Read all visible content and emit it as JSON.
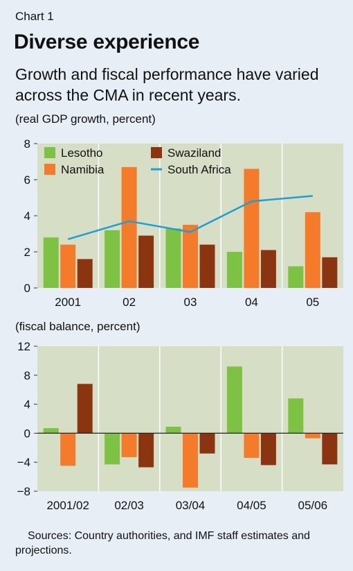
{
  "header": {
    "chart_label": "Chart 1",
    "title": "Diverse experience",
    "subtitle": "Growth and fiscal performance have varied across the CMA in recent years."
  },
  "colors": {
    "background": "#e8eef5",
    "plot_bg": "#d6dfc5",
    "Lesotho": "#7dc242",
    "Namibia": "#f47b2a",
    "Swaziland": "#8b3510",
    "South Africa": "#1e9fd4"
  },
  "sources": "Sources: Country authorities, and IMF staff estimates and projections.",
  "chart_data": [
    {
      "type": "bar",
      "title": "",
      "unit_label": "(real GDP growth, percent)",
      "categories": [
        "2001",
        "02",
        "03",
        "04",
        "05"
      ],
      "ylim": [
        0,
        8
      ],
      "yticks": [
        0,
        2,
        4,
        6,
        8
      ],
      "grid": false,
      "legend_position": "top",
      "series": [
        {
          "name": "Lesotho",
          "type": "bar",
          "values": [
            2.8,
            3.2,
            3.3,
            2.0,
            1.2
          ]
        },
        {
          "name": "Namibia",
          "type": "bar",
          "values": [
            2.4,
            6.7,
            3.5,
            6.6,
            4.2
          ]
        },
        {
          "name": "Swaziland",
          "type": "bar",
          "values": [
            1.6,
            2.9,
            2.4,
            2.1,
            1.7
          ]
        },
        {
          "name": "South Africa",
          "type": "line",
          "values": [
            2.7,
            3.7,
            3.1,
            4.8,
            5.1
          ]
        }
      ],
      "legend_order": [
        "Lesotho",
        "Swaziland",
        "Namibia",
        "South Africa"
      ]
    },
    {
      "type": "bar",
      "title": "",
      "unit_label": "(fiscal balance, percent)",
      "categories": [
        "2001/02",
        "02/03",
        "03/04",
        "04/05",
        "05/06"
      ],
      "ylim": [
        -8,
        12
      ],
      "yticks": [
        -8,
        -4,
        0,
        4,
        8,
        12
      ],
      "grid": false,
      "legend_position": "none",
      "series": [
        {
          "name": "Lesotho",
          "type": "bar",
          "values": [
            0.7,
            -4.3,
            0.9,
            9.2,
            4.8
          ]
        },
        {
          "name": "Namibia",
          "type": "bar",
          "values": [
            -4.5,
            -3.3,
            -7.5,
            -3.4,
            -0.7
          ]
        },
        {
          "name": "Swaziland",
          "type": "bar",
          "values": [
            6.8,
            -4.7,
            -2.8,
            -4.4,
            -4.3
          ]
        }
      ]
    }
  ]
}
